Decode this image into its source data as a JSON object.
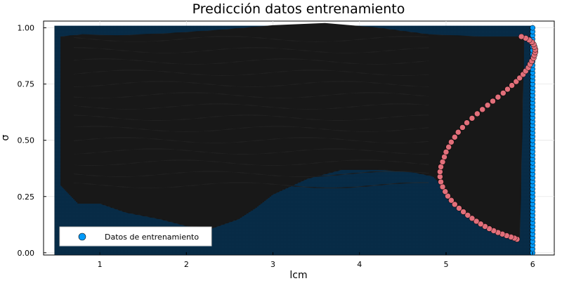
{
  "chart_data": {
    "type": "scatter",
    "title": "Predicción datos entrenamiento",
    "xlabel": "lcm",
    "ylabel": "σ",
    "xlim": [
      0.35,
      6.25
    ],
    "ylim": [
      -0.01,
      1.03
    ],
    "xticks": [
      1,
      2,
      3,
      4,
      5,
      6
    ],
    "xtick_labels": [
      "1",
      "2",
      "3",
      "4",
      "5",
      "6"
    ],
    "yticks": [
      0.0,
      0.25,
      0.5,
      0.75,
      1.0
    ],
    "ytick_labels": [
      "0.00",
      "0.25",
      "0.50",
      "0.75",
      "1.00"
    ],
    "grid": true,
    "legend_position": "bottom-left",
    "colors": {
      "training": "#009af9",
      "curve": "#e26f7a",
      "background_fill": "#04192b",
      "dark_surface": "#111111"
    },
    "series": [
      {
        "name": "Datos de entrenamiento",
        "kind": "grid-points",
        "x_range": [
          0.5,
          6.0
        ],
        "y_range": [
          0.0,
          1.0
        ],
        "column_x": 6.0
      },
      {
        "kind": "curve-points",
        "x": [
          5.82,
          5.79,
          5.75,
          5.7,
          5.65,
          5.6,
          5.55,
          5.5,
          5.45,
          5.4,
          5.35,
          5.3,
          5.25,
          5.2,
          5.15,
          5.1,
          5.06,
          5.02,
          4.99,
          4.96,
          4.94,
          4.93,
          4.93,
          4.94,
          4.96,
          4.98,
          5.0,
          5.03,
          5.06,
          5.1,
          5.14,
          5.19,
          5.24,
          5.3,
          5.36,
          5.42,
          5.48,
          5.54,
          5.6,
          5.66,
          5.71,
          5.76,
          5.81,
          5.85,
          5.89,
          5.92,
          5.95,
          5.97,
          5.99,
          6.01,
          6.02,
          6.03,
          6.03,
          6.02,
          6.01,
          5.99,
          5.96,
          5.92,
          5.87
        ],
        "y": [
          0.06,
          0.065,
          0.07,
          0.076,
          0.083,
          0.09,
          0.098,
          0.107,
          0.117,
          0.128,
          0.14,
          0.153,
          0.167,
          0.182,
          0.198,
          0.215,
          0.233,
          0.252,
          0.272,
          0.293,
          0.315,
          0.338,
          0.36,
          0.382,
          0.404,
          0.426,
          0.448,
          0.47,
          0.492,
          0.514,
          0.536,
          0.557,
          0.578,
          0.598,
          0.618,
          0.637,
          0.656,
          0.674,
          0.692,
          0.71,
          0.727,
          0.744,
          0.761,
          0.777,
          0.793,
          0.808,
          0.823,
          0.838,
          0.852,
          0.866,
          0.879,
          0.892,
          0.904,
          0.916,
          0.927,
          0.937,
          0.946,
          0.954,
          0.961
        ]
      }
    ]
  }
}
